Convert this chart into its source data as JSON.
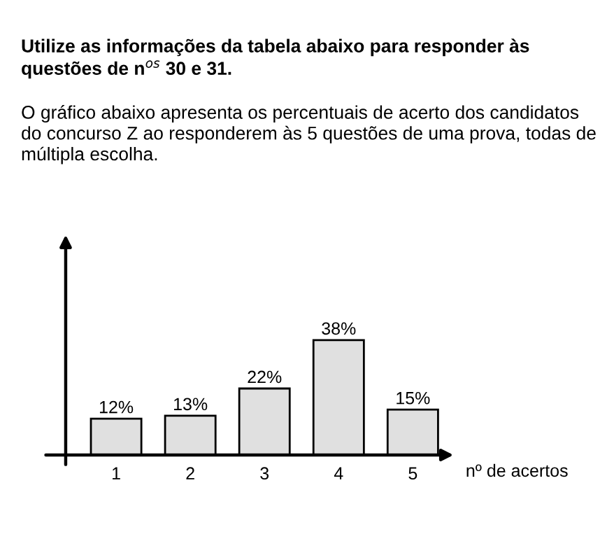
{
  "chart_data": {
    "type": "bar",
    "title": "Utilize as informações da tabela abaixo para responder às questões de n$^{os}$ 30 e 31.",
    "subtitle": "O gráfico abaixo apresenta os percentuais de acerto dos candidatos do concurso Z ao responderem às 5 questões de uma prova, todas de múltipla escolha.",
    "xlabel": "nº de acertos",
    "categories": [
      "1",
      "2",
      "3",
      "4",
      "5"
    ],
    "values": [
      12,
      13,
      22,
      38,
      15
    ],
    "value_labels": [
      "12%",
      "13%",
      "22%",
      "38%",
      "15%"
    ],
    "color": "#e0e0e0",
    "grid": false,
    "legend": false
  }
}
